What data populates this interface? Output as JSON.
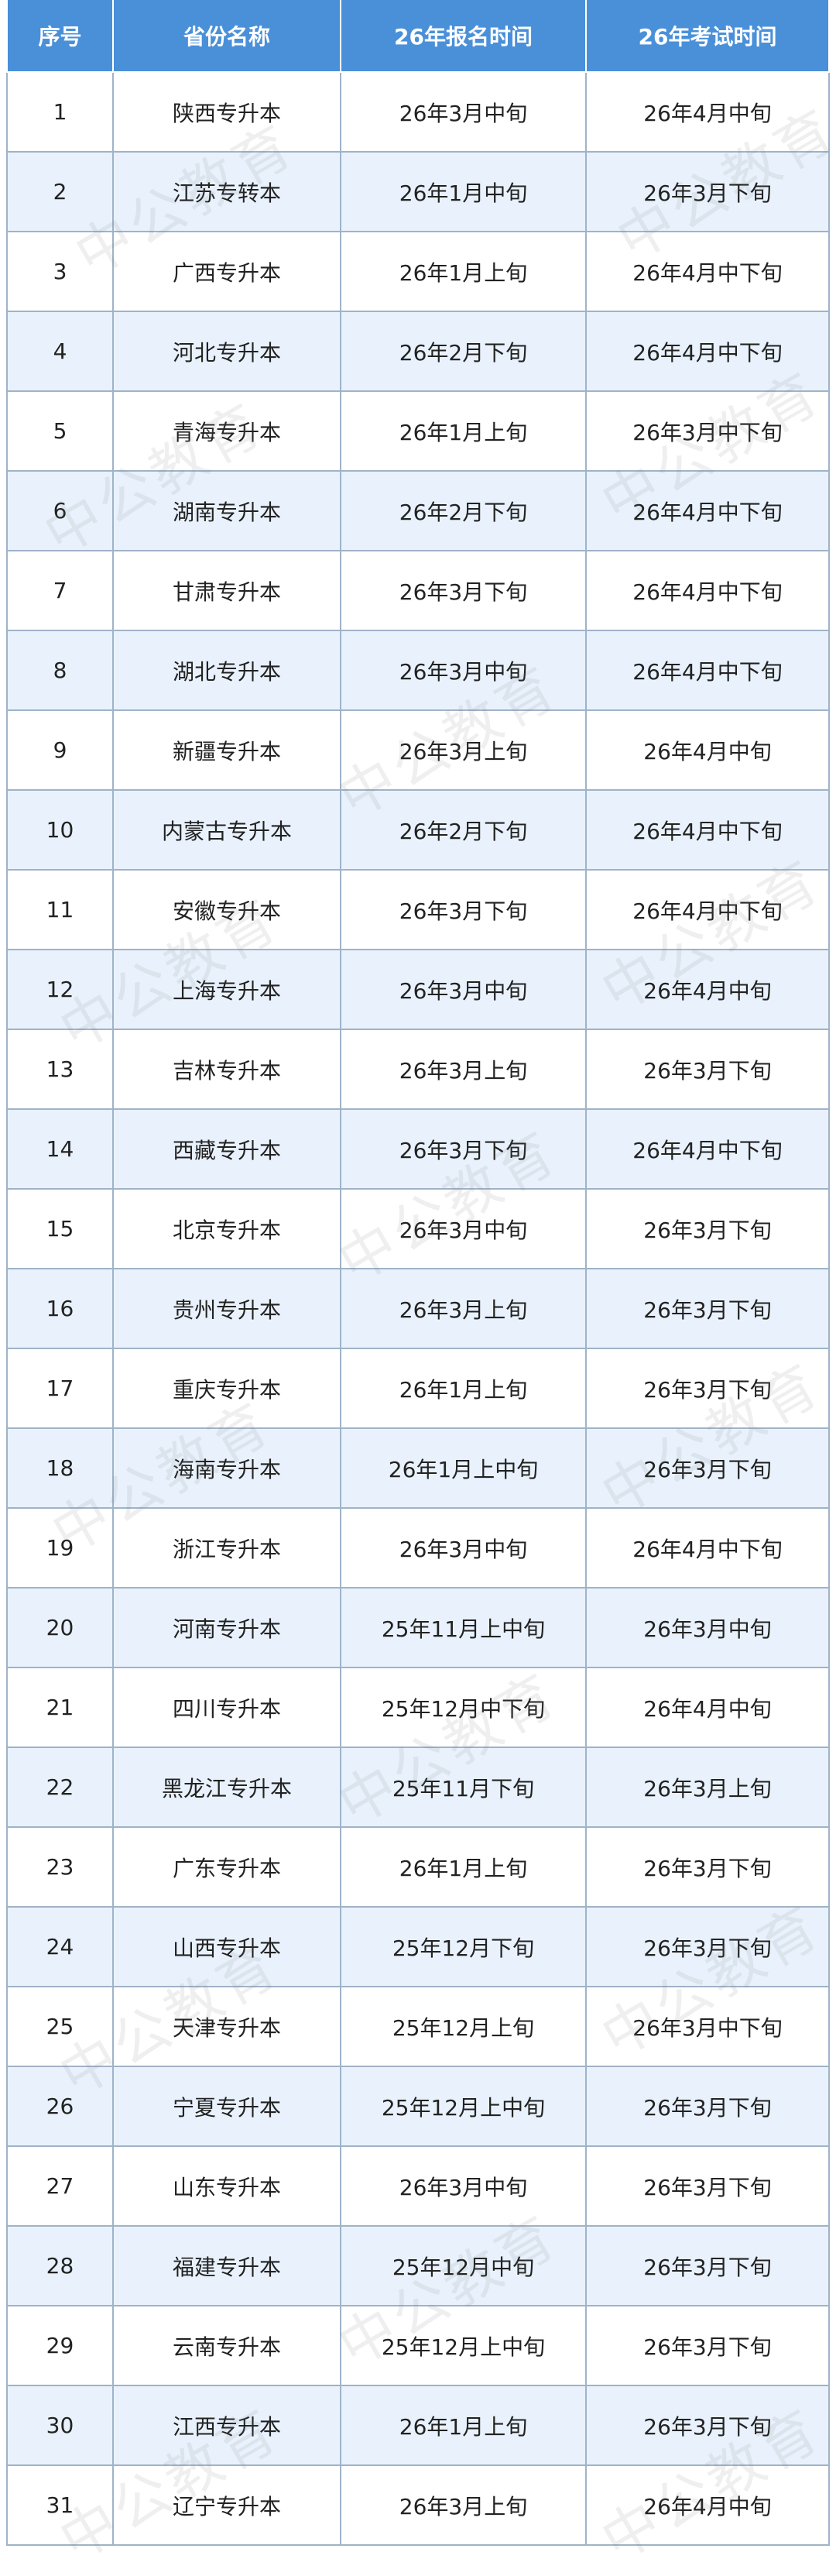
{
  "table": {
    "header": [
      "序号",
      "省份名称",
      "26年报名时间",
      "26年考试时间"
    ],
    "rows": [
      [
        1,
        "陕西专升本",
        "26年3月中旬",
        "26年4月中旬"
      ],
      [
        2,
        "江苏专转本",
        "26年1月中旬",
        "26年3月下旬"
      ],
      [
        3,
        "广西专升本",
        "26年1月上旬",
        "26年4月中下旬"
      ],
      [
        4,
        "河北专升本",
        "26年2月下旬",
        "26年4月中下旬"
      ],
      [
        5,
        "青海专升本",
        "26年1月上旬",
        "26年3月中下旬"
      ],
      [
        6,
        "湖南专升本",
        "26年2月下旬",
        "26年4月中下旬"
      ],
      [
        7,
        "甘肃专升本",
        "26年3月下旬",
        "26年4月中下旬"
      ],
      [
        8,
        "湖北专升本",
        "26年3月中旬",
        "26年4月中下旬"
      ],
      [
        9,
        "新疆专升本",
        "26年3月上旬",
        "26年4月中旬"
      ],
      [
        10,
        "内蒙古专升本",
        "26年2月下旬",
        "26年4月中下旬"
      ],
      [
        11,
        "安徽专升本",
        "26年3月下旬",
        "26年4月中下旬"
      ],
      [
        12,
        "上海专升本",
        "26年3月中旬",
        "26年4月中旬"
      ],
      [
        13,
        "吉林专升本",
        "26年3月上旬",
        "26年3月下旬"
      ],
      [
        14,
        "西藏专升本",
        "26年3月下旬",
        "26年4月中下旬"
      ],
      [
        15,
        "北京专升本",
        "26年3月中旬",
        "26年3月下旬"
      ],
      [
        16,
        "贵州专升本",
        "26年3月上旬",
        "26年3月下旬"
      ],
      [
        17,
        "重庆专升本",
        "26年1月上旬",
        "26年3月下旬"
      ],
      [
        18,
        "海南专升本",
        "26年1月上中旬",
        "26年3月下旬"
      ],
      [
        19,
        "浙江专升本",
        "26年3月中旬",
        "26年4月中下旬"
      ],
      [
        20,
        "河南专升本",
        "25年11月上中旬",
        "26年3月中旬"
      ],
      [
        21,
        "四川专升本",
        "25年12月中下旬",
        "26年4月中旬"
      ],
      [
        22,
        "黑龙江专升本",
        "25年11月下旬",
        "26年3月上旬"
      ],
      [
        23,
        "广东专升本",
        "26年1月上旬",
        "26年3月下旬"
      ],
      [
        24,
        "山西专升本",
        "25年12月下旬",
        "26年3月下旬"
      ],
      [
        25,
        "天津专升本",
        "25年12月上旬",
        "26年3月中下旬"
      ],
      [
        26,
        "宁夏专升本",
        "25年12月上中旬",
        "26年3月下旬"
      ],
      [
        27,
        "山东专升本",
        "26年3月中旬",
        "26年3月下旬"
      ],
      [
        28,
        "福建专升本",
        "25年12月中旬",
        "26年3月下旬"
      ],
      [
        29,
        "云南专升本",
        "25年12月上中旬",
        "26年3月下旬"
      ],
      [
        30,
        "江西专升本",
        "26年1月上旬",
        "26年3月下旬"
      ],
      [
        31,
        "辽宁专升本",
        "26年3月上旬",
        "26年4月中旬"
      ]
    ]
  },
  "watermark": "中公教育"
}
